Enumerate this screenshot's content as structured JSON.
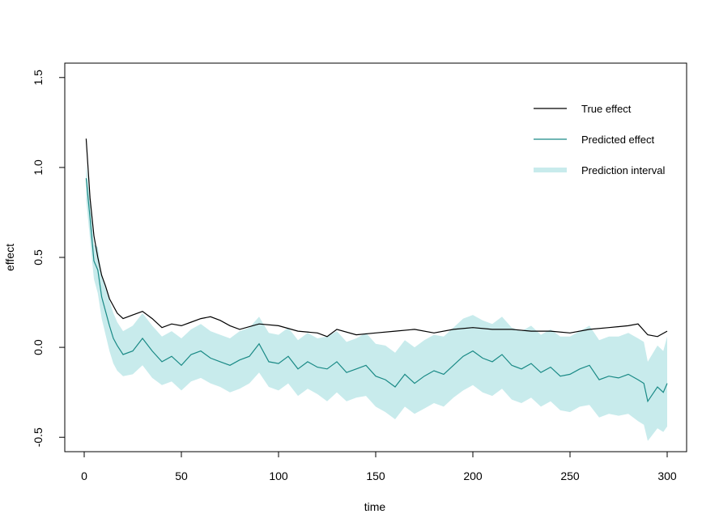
{
  "chart_data": {
    "type": "line",
    "xlabel": "time",
    "ylabel": "effect",
    "xlim": [
      -10,
      310
    ],
    "ylim": [
      -0.58,
      1.58
    ],
    "x_ticks": [
      0,
      50,
      100,
      150,
      200,
      250,
      300
    ],
    "x_tick_labels": [
      "0",
      "50",
      "100",
      "150",
      "200",
      "250",
      "300"
    ],
    "y_ticks": [
      -0.5,
      0.0,
      0.5,
      1.0,
      1.5
    ],
    "y_tick_labels": [
      "-0.5",
      "0.0",
      "0.5",
      "1.0",
      "1.5"
    ],
    "grid": false,
    "legend_position": "top-right",
    "series": [
      {
        "name": "True effect",
        "color": "#000000",
        "x": [
          1,
          3,
          5,
          7,
          9,
          11,
          13,
          15,
          17,
          20,
          25,
          30,
          35,
          40,
          45,
          50,
          55,
          60,
          65,
          70,
          75,
          80,
          90,
          100,
          110,
          120,
          125,
          130,
          140,
          150,
          160,
          170,
          180,
          190,
          200,
          210,
          220,
          230,
          240,
          250,
          260,
          270,
          280,
          285,
          290,
          295,
          300
        ],
        "values": [
          1.16,
          0.83,
          0.62,
          0.5,
          0.4,
          0.34,
          0.27,
          0.23,
          0.19,
          0.16,
          0.18,
          0.2,
          0.16,
          0.11,
          0.13,
          0.12,
          0.14,
          0.16,
          0.17,
          0.15,
          0.12,
          0.1,
          0.13,
          0.12,
          0.09,
          0.08,
          0.06,
          0.1,
          0.07,
          0.08,
          0.09,
          0.1,
          0.08,
          0.1,
          0.11,
          0.1,
          0.1,
          0.09,
          0.09,
          0.08,
          0.1,
          0.11,
          0.12,
          0.13,
          0.07,
          0.06,
          0.09
        ]
      },
      {
        "name": "Predicted effect",
        "color": "#1a8a86",
        "x": [
          1,
          3,
          5,
          7,
          9,
          11,
          13,
          15,
          17,
          20,
          25,
          30,
          35,
          40,
          45,
          50,
          55,
          60,
          65,
          70,
          75,
          80,
          85,
          90,
          95,
          100,
          105,
          110,
          115,
          120,
          125,
          130,
          135,
          140,
          145,
          150,
          155,
          160,
          165,
          170,
          175,
          180,
          185,
          190,
          195,
          200,
          205,
          210,
          215,
          220,
          225,
          230,
          235,
          240,
          245,
          250,
          255,
          260,
          265,
          270,
          275,
          280,
          285,
          288,
          290,
          295,
          298,
          300
        ],
        "values": [
          0.94,
          0.72,
          0.48,
          0.43,
          0.28,
          0.2,
          0.12,
          0.05,
          0.01,
          -0.04,
          -0.02,
          0.05,
          -0.02,
          -0.08,
          -0.05,
          -0.1,
          -0.04,
          -0.02,
          -0.06,
          -0.08,
          -0.1,
          -0.07,
          -0.05,
          0.02,
          -0.08,
          -0.09,
          -0.05,
          -0.12,
          -0.08,
          -0.11,
          -0.12,
          -0.08,
          -0.14,
          -0.12,
          -0.1,
          -0.16,
          -0.18,
          -0.22,
          -0.15,
          -0.2,
          -0.16,
          -0.13,
          -0.15,
          -0.1,
          -0.05,
          -0.02,
          -0.06,
          -0.08,
          -0.04,
          -0.1,
          -0.12,
          -0.09,
          -0.14,
          -0.11,
          -0.16,
          -0.15,
          -0.12,
          -0.1,
          -0.18,
          -0.16,
          -0.17,
          -0.15,
          -0.18,
          -0.2,
          -0.3,
          -0.22,
          -0.25,
          -0.2
        ]
      },
      {
        "name": "Prediction interval",
        "color": "#c8ebec",
        "x": [
          1,
          3,
          5,
          7,
          9,
          11,
          13,
          15,
          17,
          20,
          25,
          30,
          35,
          40,
          45,
          50,
          55,
          60,
          65,
          70,
          75,
          80,
          85,
          90,
          95,
          100,
          105,
          110,
          115,
          120,
          125,
          130,
          135,
          140,
          145,
          150,
          155,
          160,
          165,
          170,
          175,
          180,
          185,
          190,
          195,
          200,
          205,
          210,
          215,
          220,
          225,
          230,
          235,
          240,
          245,
          250,
          255,
          260,
          265,
          270,
          275,
          280,
          285,
          288,
          290,
          295,
          298,
          300
        ],
        "lower": [
          0.82,
          0.6,
          0.38,
          0.3,
          0.16,
          0.07,
          -0.02,
          -0.09,
          -0.13,
          -0.16,
          -0.15,
          -0.1,
          -0.17,
          -0.21,
          -0.19,
          -0.24,
          -0.19,
          -0.17,
          -0.2,
          -0.22,
          -0.25,
          -0.23,
          -0.2,
          -0.14,
          -0.22,
          -0.24,
          -0.2,
          -0.27,
          -0.23,
          -0.26,
          -0.3,
          -0.25,
          -0.3,
          -0.28,
          -0.27,
          -0.33,
          -0.36,
          -0.4,
          -0.33,
          -0.37,
          -0.34,
          -0.31,
          -0.33,
          -0.28,
          -0.24,
          -0.21,
          -0.25,
          -0.27,
          -0.23,
          -0.29,
          -0.31,
          -0.28,
          -0.33,
          -0.3,
          -0.35,
          -0.36,
          -0.33,
          -0.32,
          -0.39,
          -0.37,
          -0.38,
          -0.37,
          -0.41,
          -0.43,
          -0.52,
          -0.45,
          -0.47,
          -0.44
        ],
        "upper": [
          1.02,
          0.82,
          0.57,
          0.56,
          0.4,
          0.33,
          0.26,
          0.19,
          0.14,
          0.09,
          0.12,
          0.19,
          0.12,
          0.06,
          0.09,
          0.05,
          0.1,
          0.13,
          0.09,
          0.07,
          0.05,
          0.09,
          0.11,
          0.17,
          0.08,
          0.07,
          0.11,
          0.04,
          0.08,
          0.05,
          0.06,
          0.09,
          0.03,
          0.05,
          0.08,
          0.02,
          0.01,
          -0.03,
          0.04,
          0.0,
          0.04,
          0.07,
          0.06,
          0.11,
          0.16,
          0.18,
          0.15,
          0.13,
          0.17,
          0.11,
          0.09,
          0.12,
          0.07,
          0.1,
          0.06,
          0.06,
          0.09,
          0.12,
          0.04,
          0.06,
          0.06,
          0.08,
          0.05,
          0.03,
          -0.08,
          0.01,
          -0.02,
          0.06
        ]
      }
    ]
  }
}
